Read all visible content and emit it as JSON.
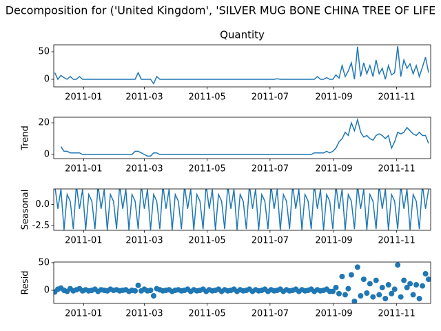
{
  "chart_data": {
    "type": "decomposition",
    "title": "Decomposition for ('United Kingdom', 'SILVER MUG BONE CHINA TREE OF LIFE",
    "x": [
      -28,
      -25,
      -22,
      -19,
      -16,
      -13,
      -10,
      -7,
      -4,
      -1,
      2,
      5,
      8,
      11,
      14,
      17,
      20,
      23,
      26,
      29,
      32,
      35,
      38,
      41,
      44,
      47,
      50,
      53,
      56,
      59,
      62,
      65,
      68,
      71,
      74,
      77,
      80,
      83,
      86,
      89,
      92,
      95,
      98,
      101,
      104,
      107,
      110,
      113,
      116,
      119,
      122,
      125,
      128,
      131,
      134,
      137,
      140,
      143,
      146,
      149,
      152,
      155,
      158,
      161,
      164,
      167,
      170,
      173,
      176,
      179,
      182,
      185,
      188,
      191,
      194,
      197,
      200,
      203,
      206,
      209,
      212,
      215,
      218,
      221,
      224,
      227,
      230,
      233,
      236,
      239,
      242,
      245,
      248,
      251,
      254,
      257,
      260,
      263,
      266,
      269,
      272,
      275,
      278,
      281,
      284,
      287,
      290,
      293,
      296,
      299,
      302,
      305,
      308,
      311,
      314,
      317,
      320,
      323,
      326,
      329,
      332,
      335
    ],
    "xlim": [
      -29,
      337
    ],
    "xticks": [
      {
        "value": 0,
        "label": "2011-01"
      },
      {
        "value": 59,
        "label": "2011-03"
      },
      {
        "value": 120,
        "label": "2011-05"
      },
      {
        "value": 181,
        "label": "2011-07"
      },
      {
        "value": 243,
        "label": "2011-09"
      },
      {
        "value": 304,
        "label": "2011-11"
      }
    ],
    "panels": [
      {
        "title": "Quantity",
        "kind": "line",
        "color": "#1f77b4",
        "ylim": [
          -13.75,
          62.5
        ],
        "yticks": [
          0,
          50
        ],
        "values": [
          12,
          0,
          7,
          3,
          0,
          5,
          0,
          0,
          5,
          0,
          0,
          0,
          0,
          0,
          0,
          0,
          0,
          0,
          0,
          0,
          0,
          0,
          0,
          0,
          0,
          0,
          0,
          12,
          0,
          0,
          0,
          0,
          -8,
          5,
          0,
          0,
          0,
          0,
          0,
          0,
          0,
          0,
          0,
          0,
          0,
          0,
          0,
          0,
          0,
          0,
          0,
          0,
          0,
          0,
          0,
          0,
          0,
          0,
          0,
          0,
          0,
          0,
          0,
          0,
          0,
          0,
          0,
          0,
          0,
          0,
          0,
          0,
          1,
          0,
          0,
          0,
          0,
          0,
          0,
          0,
          0,
          0,
          0,
          0,
          0,
          5,
          0,
          0,
          3,
          0,
          0,
          8,
          2,
          25,
          5,
          15,
          30,
          0,
          59,
          5,
          30,
          10,
          25,
          5,
          35,
          10,
          20,
          0,
          25,
          8,
          12,
          60,
          5,
          35,
          20,
          28,
          10,
          25,
          5,
          22,
          40,
          12
        ]
      },
      {
        "ylabel": "Trend",
        "kind": "line",
        "color": "#1f77b4",
        "ylim": [
          -2.6,
          23.5
        ],
        "yticks": [
          0,
          20
        ],
        "values": [
          null,
          null,
          5,
          2,
          2,
          1,
          1,
          1,
          1,
          0,
          0,
          0,
          0,
          0,
          0,
          0,
          0,
          0,
          0,
          0,
          0,
          0,
          0,
          0,
          0,
          0,
          2,
          2,
          1,
          0,
          -1,
          -1,
          1,
          1,
          0,
          0,
          0,
          0,
          0,
          0,
          0,
          0,
          0,
          0,
          0,
          0,
          0,
          0,
          0,
          0,
          0,
          0,
          0,
          0,
          0,
          0,
          0,
          0,
          0,
          0,
          0,
          0,
          0,
          0,
          0,
          0,
          0,
          0,
          0,
          0,
          0,
          0,
          0,
          0,
          0,
          0,
          0,
          0,
          0,
          0,
          0,
          0,
          0,
          0,
          1,
          1,
          1,
          1,
          2,
          1,
          2,
          4,
          8,
          10,
          14,
          12,
          20,
          15,
          22,
          14,
          11,
          12,
          10,
          9,
          12,
          13,
          12,
          10,
          12,
          4,
          8,
          14,
          13,
          14,
          17,
          15,
          13,
          12,
          14,
          12,
          12,
          7
        ]
      },
      {
        "ylabel": "Seasonal",
        "kind": "line",
        "color": "#1f77b4",
        "ylim": [
          -3.05,
          1.85
        ],
        "yticks": [
          -2.5,
          {
            "value": 0,
            "label": "0.0"
          }
        ],
        "values": [
          2.3,
          -0.5,
          1.8,
          -3.0,
          1.2,
          0.4,
          -2.9,
          2.3,
          -0.5,
          1.8,
          -3.0,
          1.2,
          0.4,
          -2.9,
          2.3,
          -0.5,
          1.8,
          -3.0,
          1.2,
          0.4,
          -2.9,
          2.3,
          -0.5,
          1.8,
          -3.0,
          1.2,
          0.4,
          -2.9,
          2.3,
          -0.5,
          1.8,
          -3.0,
          1.2,
          0.4,
          -2.9,
          2.3,
          -0.5,
          1.8,
          -3.0,
          1.2,
          0.4,
          -2.9,
          2.3,
          -0.5,
          1.8,
          -3.0,
          1.2,
          0.4,
          -2.9,
          2.3,
          -0.5,
          1.8,
          -3.0,
          1.2,
          0.4,
          -2.9,
          2.3,
          -0.5,
          1.8,
          -3.0,
          1.2,
          0.4,
          -2.9,
          2.3,
          -0.5,
          1.8,
          -3.0,
          1.2,
          0.4,
          -2.9,
          2.3,
          -0.5,
          1.8,
          -3.0,
          1.2,
          0.4,
          -2.9,
          2.3,
          -0.5,
          1.8,
          -3.0,
          1.2,
          0.4,
          -2.9,
          2.3,
          -0.5,
          1.8,
          -3.0,
          1.2,
          0.4,
          -2.9,
          2.3,
          -0.5,
          1.8,
          -3.0,
          1.2,
          0.4,
          -2.9,
          2.3,
          -0.5,
          1.8,
          -3.0,
          1.2,
          0.4,
          -2.9,
          2.3,
          -0.5,
          1.8,
          -3.0,
          1.2,
          0.4,
          -2.9,
          2.3,
          -0.5,
          1.8,
          -3.0,
          1.2,
          0.4,
          -2.9,
          2.3,
          -0.5,
          1.8
        ]
      },
      {
        "ylabel": "Resid",
        "kind": "scatter",
        "color": "#1f77b4",
        "ylim": [
          -23.75,
          51.25
        ],
        "yticks": [
          0,
          50
        ],
        "values": [
          -3,
          2,
          4,
          0,
          -2,
          3,
          -1,
          1,
          3,
          -1,
          1,
          -1,
          0,
          2,
          -2,
          1,
          0,
          -1,
          2,
          0,
          1,
          -1,
          0,
          1,
          -2,
          0,
          -1,
          9,
          -1,
          2,
          -1,
          0,
          -10,
          3,
          1,
          -1,
          0,
          1,
          -2,
          0,
          1,
          -1,
          0,
          2,
          -2,
          1,
          -1,
          0,
          2,
          -2,
          1,
          -1,
          0,
          2,
          -2,
          1,
          -1,
          0,
          2,
          -2,
          1,
          -1,
          0,
          2,
          -2,
          1,
          -1,
          0,
          2,
          -2,
          1,
          -1,
          0,
          2,
          -2,
          1,
          -1,
          0,
          2,
          -2,
          1,
          -1,
          0,
          2,
          -2,
          1,
          -1,
          0,
          2,
          -2,
          -2,
          5,
          -6,
          25,
          -8,
          3,
          28,
          -20,
          42,
          -10,
          20,
          -5,
          12,
          -12,
          18,
          -8,
          5,
          -15,
          10,
          -6,
          2,
          46,
          -12,
          18,
          5,
          12,
          -8,
          10,
          -15,
          8,
          30,
          20
        ]
      }
    ]
  }
}
